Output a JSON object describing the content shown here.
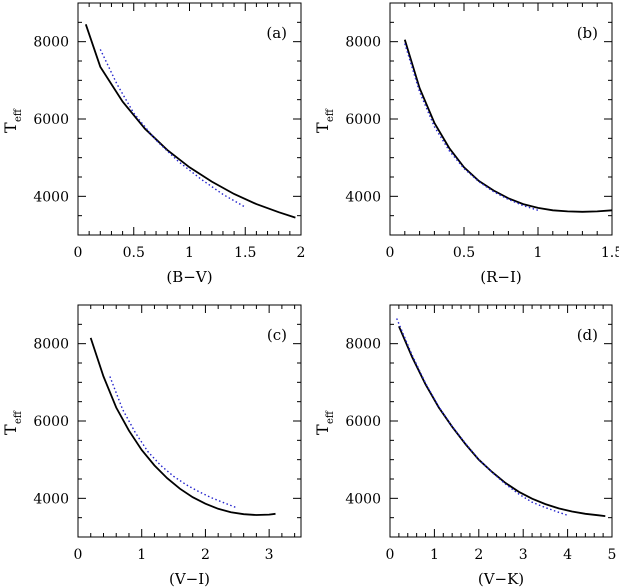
{
  "chart_data": [
    {
      "type": "line",
      "panel": "(a)",
      "xlabel": "(B−V)",
      "ylabel_main": "T",
      "ylabel_sub": "eff",
      "xlim": [
        0,
        2
      ],
      "ylim": [
        3000,
        9000
      ],
      "xticks": [
        0,
        0.5,
        1,
        1.5,
        2
      ],
      "xtick_labels": [
        "0",
        "0.5",
        "1",
        "1.5",
        "2"
      ],
      "yticks": [
        4000,
        6000,
        8000
      ],
      "ytick_labels": [
        "4000",
        "6000",
        "8000"
      ],
      "series": [
        {
          "style": "solid",
          "color": "#000000",
          "x": [
            0.07,
            0.2,
            0.4,
            0.6,
            0.8,
            1.0,
            1.2,
            1.4,
            1.6,
            1.8,
            1.95
          ],
          "y": [
            8450,
            7350,
            6450,
            5750,
            5200,
            4750,
            4380,
            4060,
            3800,
            3590,
            3450
          ]
        },
        {
          "style": "dotted",
          "color": "#2222cc",
          "x": [
            0.2,
            0.35,
            0.5,
            0.7,
            0.9,
            1.1,
            1.3,
            1.5
          ],
          "y": [
            7800,
            6900,
            6150,
            5450,
            4900,
            4450,
            4050,
            3720
          ]
        }
      ]
    },
    {
      "type": "line",
      "panel": "(b)",
      "xlabel": "(R−I)",
      "ylabel_main": "T",
      "ylabel_sub": "eff",
      "xlim": [
        0,
        1.5
      ],
      "ylim": [
        3000,
        9000
      ],
      "xticks": [
        0,
        0.5,
        1,
        1.5
      ],
      "xtick_labels": [
        "0",
        "0.5",
        "1",
        "1.5"
      ],
      "yticks": [
        4000,
        6000,
        8000
      ],
      "ytick_labels": [
        "4000",
        "6000",
        "8000"
      ],
      "series": [
        {
          "style": "solid",
          "color": "#000000",
          "x": [
            0.1,
            0.2,
            0.3,
            0.4,
            0.5,
            0.6,
            0.7,
            0.8,
            0.9,
            1.0,
            1.1,
            1.2,
            1.3,
            1.4,
            1.5
          ],
          "y": [
            8050,
            6800,
            5900,
            5250,
            4750,
            4400,
            4150,
            3950,
            3800,
            3700,
            3640,
            3610,
            3600,
            3610,
            3640
          ]
        },
        {
          "style": "dotted",
          "color": "#2222cc",
          "x": [
            0.1,
            0.2,
            0.3,
            0.4,
            0.5,
            0.6,
            0.7,
            0.8,
            0.9,
            1.0
          ],
          "y": [
            7950,
            6700,
            5800,
            5180,
            4720,
            4380,
            4120,
            3920,
            3760,
            3640
          ]
        }
      ]
    },
    {
      "type": "line",
      "panel": "(c)",
      "xlabel": "(V−I)",
      "ylabel_main": "T",
      "ylabel_sub": "eff",
      "xlim": [
        0,
        3.5
      ],
      "ylim": [
        3000,
        9000
      ],
      "xticks": [
        0,
        1,
        2,
        3
      ],
      "xtick_labels": [
        "0",
        "1",
        "2",
        "3"
      ],
      "yticks": [
        4000,
        6000,
        8000
      ],
      "ytick_labels": [
        "4000",
        "6000",
        "8000"
      ],
      "series": [
        {
          "style": "solid",
          "color": "#000000",
          "x": [
            0.2,
            0.4,
            0.6,
            0.8,
            1.0,
            1.2,
            1.4,
            1.6,
            1.8,
            2.0,
            2.2,
            2.4,
            2.6,
            2.8,
            3.0,
            3.1
          ],
          "y": [
            8150,
            7150,
            6350,
            5750,
            5250,
            4850,
            4520,
            4250,
            4030,
            3860,
            3730,
            3640,
            3590,
            3570,
            3580,
            3600
          ]
        },
        {
          "style": "dotted",
          "color": "#2222cc",
          "x": [
            0.5,
            0.7,
            0.9,
            1.1,
            1.3,
            1.5,
            1.7,
            1.9,
            2.1,
            2.3,
            2.5
          ],
          "y": [
            7150,
            6300,
            5700,
            5200,
            4850,
            4570,
            4350,
            4170,
            4010,
            3880,
            3750
          ]
        }
      ]
    },
    {
      "type": "line",
      "panel": "(d)",
      "xlabel": "(V−K)",
      "ylabel_main": "T",
      "ylabel_sub": "eff",
      "xlim": [
        0,
        5
      ],
      "ylim": [
        3000,
        9000
      ],
      "xticks": [
        0,
        1,
        2,
        3,
        4,
        5
      ],
      "xtick_labels": [
        "0",
        "1",
        "2",
        "3",
        "4",
        "5"
      ],
      "yticks": [
        4000,
        6000,
        8000
      ],
      "ytick_labels": [
        "4000",
        "6000",
        "8000"
      ],
      "series": [
        {
          "style": "solid",
          "color": "#000000",
          "x": [
            0.2,
            0.5,
            0.8,
            1.1,
            1.4,
            1.7,
            2.0,
            2.3,
            2.6,
            2.9,
            3.2,
            3.5,
            3.8,
            4.1,
            4.4,
            4.7,
            4.85
          ],
          "y": [
            8450,
            7650,
            6950,
            6350,
            5850,
            5400,
            5000,
            4680,
            4400,
            4170,
            3990,
            3850,
            3740,
            3660,
            3600,
            3560,
            3540
          ]
        },
        {
          "style": "dotted",
          "color": "#2222cc",
          "x": [
            0.15,
            0.5,
            0.8,
            1.1,
            1.4,
            1.7,
            2.0,
            2.3,
            2.6,
            2.9,
            3.2,
            3.5,
            3.8,
            4.0
          ],
          "y": [
            8650,
            7700,
            6980,
            6370,
            5860,
            5420,
            5010,
            4670,
            4370,
            4110,
            3900,
            3760,
            3640,
            3560
          ]
        }
      ]
    }
  ]
}
